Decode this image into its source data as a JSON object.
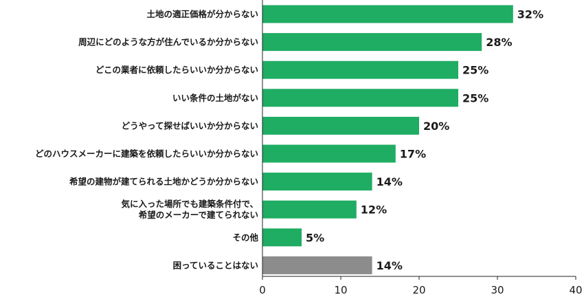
{
  "chart_data": {
    "type": "bar",
    "orientation": "horizontal",
    "title": "",
    "xlabel": "",
    "ylabel": "",
    "xlim": [
      0,
      40
    ],
    "xticks": [
      0,
      10,
      20,
      30,
      40
    ],
    "grid": false,
    "legend": "none",
    "value_suffix": "%",
    "categories": [
      [
        "土地の適正価格が分からない"
      ],
      [
        "周辺にどのような方が住んでいるか分からない"
      ],
      [
        "どこの業者に依頼したらいいか分からない"
      ],
      [
        "いい条件の土地がない"
      ],
      [
        "どうやって探せばいいか分からない"
      ],
      [
        "どのハウスメーカーに建築を依頼したらいいか分からない"
      ],
      [
        "希望の建物が建てられる土地かどうか分からない"
      ],
      [
        "気に入った場所でも建築条件付で、",
        "希望のメーカーで建てられない"
      ],
      [
        "その他"
      ],
      [
        "困っていることはない"
      ]
    ],
    "values": [
      32,
      28,
      25,
      25,
      20,
      17,
      14,
      12,
      5,
      14
    ],
    "colors": [
      "#1fac63",
      "#1fac63",
      "#1fac63",
      "#1fac63",
      "#1fac63",
      "#1fac63",
      "#1fac63",
      "#1fac63",
      "#1fac63",
      "#8c8c8c"
    ]
  }
}
